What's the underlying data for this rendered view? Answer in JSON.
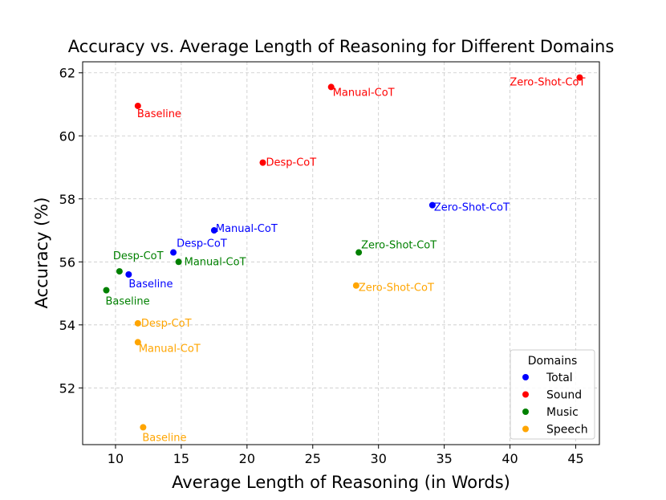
{
  "chart_data": {
    "type": "scatter",
    "title": "Accuracy vs. Average Length of Reasoning for Different Domains",
    "xlabel": "Average Length of Reasoning (in Words)",
    "ylabel": "Accuracy (%)",
    "xlim": [
      7.5,
      46.8
    ],
    "ylim": [
      50.2,
      62.35
    ],
    "xticks": [
      10,
      15,
      20,
      25,
      30,
      35,
      40,
      45
    ],
    "yticks": [
      52,
      54,
      56,
      58,
      60,
      62
    ],
    "grid": true,
    "legend": {
      "title": "Domains",
      "position": "lower-right"
    },
    "series": [
      {
        "name": "Total",
        "color": "#0000ff",
        "points": [
          {
            "label": "Baseline",
            "x": 11.0,
            "y": 55.6
          },
          {
            "label": "Desp-CoT",
            "x": 14.4,
            "y": 56.3
          },
          {
            "label": "Manual-CoT",
            "x": 17.5,
            "y": 57.0
          },
          {
            "label": "Zero-Shot-CoT",
            "x": 34.1,
            "y": 57.8
          }
        ]
      },
      {
        "name": "Sound",
        "color": "#ff0000",
        "points": [
          {
            "label": "Baseline",
            "x": 11.7,
            "y": 60.95
          },
          {
            "label": "Desp-CoT",
            "x": 21.2,
            "y": 59.15
          },
          {
            "label": "Manual-CoT",
            "x": 26.4,
            "y": 61.55
          },
          {
            "label": "Zero-Shot-CoT",
            "x": 45.3,
            "y": 61.85
          }
        ]
      },
      {
        "name": "Music",
        "color": "#008000",
        "points": [
          {
            "label": "Baseline",
            "x": 9.3,
            "y": 55.1
          },
          {
            "label": "Desp-CoT",
            "x": 10.3,
            "y": 55.7
          },
          {
            "label": "Manual-CoT",
            "x": 14.8,
            "y": 56.0
          },
          {
            "label": "Zero-Shot-CoT",
            "x": 28.5,
            "y": 56.3
          }
        ]
      },
      {
        "name": "Speech",
        "color": "#ffa500",
        "points": [
          {
            "label": "Baseline",
            "x": 12.1,
            "y": 50.75
          },
          {
            "label": "Desp-CoT",
            "x": 11.7,
            "y": 54.05
          },
          {
            "label": "Manual-CoT",
            "x": 11.7,
            "y": 53.45
          },
          {
            "label": "Zero-Shot-CoT",
            "x": 28.3,
            "y": 55.25
          }
        ]
      }
    ]
  }
}
